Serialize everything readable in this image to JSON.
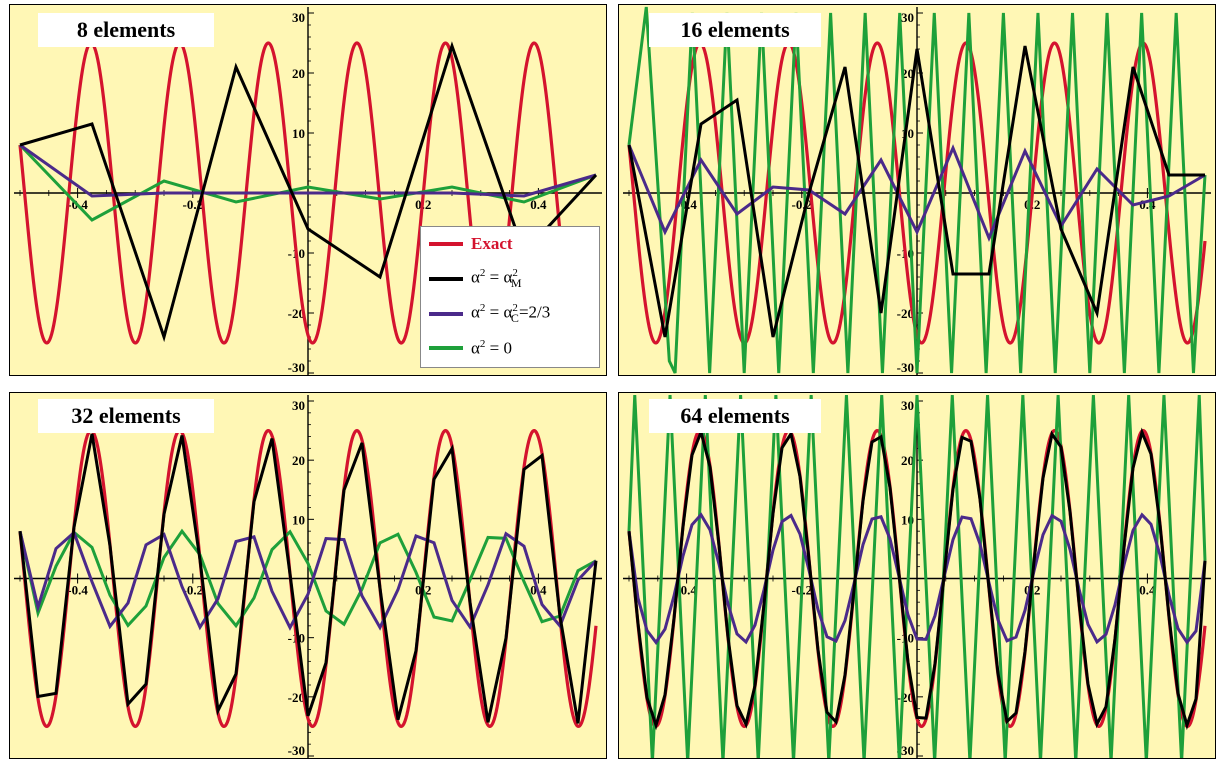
{
  "colors": {
    "exact": "#d4132e",
    "alpha_m": "#000000",
    "alpha_c": "#4b2a8a",
    "alpha_0": "#1ea03a",
    "panel_bg": "#fff7b5"
  },
  "legend": {
    "entries": [
      {
        "key": "exact",
        "label": "Exact"
      },
      {
        "key": "alpha_m",
        "label": "α² = α²M"
      },
      {
        "key": "alpha_c",
        "label": "α² = α²C=2/3"
      },
      {
        "key": "alpha_0",
        "label": "α² = 0"
      }
    ],
    "alpha_m_pre": "α",
    "alpha_m_sup": "2",
    "alpha_m_mid": " = α",
    "alpha_m_sup2": "2",
    "alpha_m_sub": "M",
    "alpha_c_pre": "α",
    "alpha_c_sup": "2",
    "alpha_c_mid": " = α",
    "alpha_c_sup2": "2",
    "alpha_c_sub": "C",
    "alpha_c_tail": "=2/3",
    "alpha_0_pre": "α",
    "alpha_0_sup": "2",
    "alpha_0_tail": " = 0"
  },
  "chart_data": [
    {
      "type": "line",
      "title": "8 elements",
      "xlim": [
        -0.5,
        0.5
      ],
      "ylim": [
        -30,
        30
      ],
      "x_ticks": [
        "-0.4",
        "-0.2",
        "0.2",
        "0.4"
      ],
      "y_ticks": [
        "30",
        "20",
        "10",
        "-10",
        "-20",
        "-30"
      ],
      "exact": {
        "amplitude": 25,
        "wavenumber": 6.5
      },
      "series": [
        {
          "key": "alpha_m",
          "x": [
            -0.5,
            -0.375,
            -0.25,
            -0.125,
            0.0,
            0.125,
            0.25,
            0.375,
            0.5
          ],
          "y": [
            8,
            11.5,
            -24,
            21,
            -6,
            -14,
            24.5,
            -10,
            3
          ]
        },
        {
          "key": "alpha_c",
          "x": [
            -0.5,
            -0.375,
            -0.25,
            -0.125,
            0.0,
            0.125,
            0.25,
            0.375,
            0.5
          ],
          "y": [
            8,
            -0.5,
            0,
            0,
            0,
            0,
            0,
            -0.5,
            3
          ]
        },
        {
          "key": "alpha_0",
          "x": [
            -0.5,
            -0.375,
            -0.25,
            -0.125,
            0.0,
            0.125,
            0.25,
            0.375,
            0.5
          ],
          "y": [
            8,
            -4.5,
            2,
            -1.5,
            1,
            -1,
            1,
            -1.5,
            3
          ]
        }
      ]
    },
    {
      "type": "line",
      "title": "16 elements",
      "xlim": [
        -0.5,
        0.5
      ],
      "ylim": [
        -30,
        30
      ],
      "x_ticks": [
        "-0.4",
        "-0.2",
        "0.2",
        "0.4"
      ],
      "y_ticks": [
        "30",
        "20",
        "10",
        "-10",
        "-20",
        "-30"
      ],
      "exact": {
        "amplitude": 25,
        "wavenumber": 6.5
      },
      "series": [
        {
          "key": "alpha_m",
          "x": [
            -0.5,
            -0.4375,
            -0.375,
            -0.3125,
            -0.25,
            -0.1875,
            -0.125,
            -0.0625,
            0.0,
            0.0625,
            0.125,
            0.1875,
            0.25,
            0.3125,
            0.375,
            0.4375,
            0.5
          ],
          "y": [
            8,
            -24,
            11.5,
            15.5,
            -24,
            0,
            21,
            -20,
            24,
            -13.5,
            -13.5,
            24.5,
            -6,
            -20,
            21,
            3,
            3
          ]
        },
        {
          "key": "alpha_c",
          "x": [
            -0.5,
            -0.4375,
            -0.375,
            -0.3125,
            -0.25,
            -0.1875,
            -0.125,
            -0.0625,
            0.0,
            0.0625,
            0.125,
            0.1875,
            0.25,
            0.3125,
            0.375,
            0.4375,
            0.5
          ],
          "y": [
            8,
            -6.5,
            5.5,
            -3.5,
            1,
            0.5,
            -3.5,
            5.5,
            -6.5,
            7.5,
            -7.5,
            7,
            -5.5,
            4,
            -2,
            -0.5,
            3
          ]
        },
        {
          "key": "alpha_0",
          "pattern": "sawtooth",
          "amplitude": 30,
          "points": [
            [
              -0.5,
              8
            ],
            [
              -0.47,
              31
            ],
            [
              -0.43,
              -28
            ],
            [
              -0.42,
              -30
            ],
            [
              -0.39,
              30
            ],
            [
              -0.36,
              -30
            ],
            [
              -0.33,
              30
            ],
            [
              -0.3,
              -30
            ],
            [
              -0.27,
              30
            ],
            [
              -0.24,
              -30
            ],
            [
              -0.21,
              30
            ],
            [
              -0.18,
              -30
            ],
            [
              -0.15,
              30
            ],
            [
              -0.12,
              -30
            ],
            [
              -0.09,
              30
            ],
            [
              -0.06,
              -30
            ],
            [
              -0.03,
              30
            ],
            [
              0.0,
              -30
            ],
            [
              0.03,
              30
            ],
            [
              0.06,
              -30
            ],
            [
              0.09,
              30
            ],
            [
              0.12,
              -30
            ],
            [
              0.15,
              30
            ],
            [
              0.18,
              -30
            ],
            [
              0.21,
              30
            ],
            [
              0.24,
              -30
            ],
            [
              0.27,
              30
            ],
            [
              0.3,
              -30
            ],
            [
              0.33,
              30
            ],
            [
              0.36,
              -30
            ],
            [
              0.39,
              30
            ],
            [
              0.42,
              -30
            ],
            [
              0.45,
              30
            ],
            [
              0.48,
              -30
            ],
            [
              0.5,
              3
            ]
          ]
        }
      ]
    },
    {
      "type": "line",
      "title": "32 elements",
      "xlim": [
        -0.5,
        0.5
      ],
      "ylim": [
        -30,
        30
      ],
      "x_ticks": [
        "-0.4",
        "-0.2",
        "0.2",
        "0.4"
      ],
      "y_ticks": [
        "30",
        "20",
        "10",
        "-10",
        "-20",
        "-30"
      ],
      "exact": {
        "amplitude": 25,
        "wavenumber": 6.5
      },
      "series": [
        {
          "key": "alpha_m",
          "sampled": 32,
          "amplitude": 24.5,
          "wavenumber": 6.5
        },
        {
          "key": "alpha_c",
          "sampled": 32,
          "amplitude": 8.3,
          "wavenumber": 6.5,
          "phase_shift": 0.5
        },
        {
          "key": "alpha_0",
          "sampled": 32,
          "amplitude": 8.0,
          "wavenumber": 5.5,
          "phase_shift": 0.5
        }
      ]
    },
    {
      "type": "line",
      "title": "64 elements",
      "xlim": [
        -0.5,
        0.5
      ],
      "ylim": [
        -30,
        30
      ],
      "x_ticks": [
        "-0.4",
        "-0.2",
        "0.2",
        "0.4"
      ],
      "y_ticks": [
        "30",
        "20",
        "10",
        "-10",
        "-20",
        "-30"
      ],
      "exact": {
        "amplitude": 25,
        "wavenumber": 6.5
      },
      "series": [
        {
          "key": "alpha_m",
          "sampled": 64,
          "amplitude": 24.8,
          "wavenumber": 6.5
        },
        {
          "key": "alpha_c",
          "sampled": 64,
          "amplitude": 10.8,
          "wavenumber": 6.5
        },
        {
          "key": "alpha_0",
          "pattern": "sawtooth",
          "count": 33
        }
      ]
    }
  ]
}
